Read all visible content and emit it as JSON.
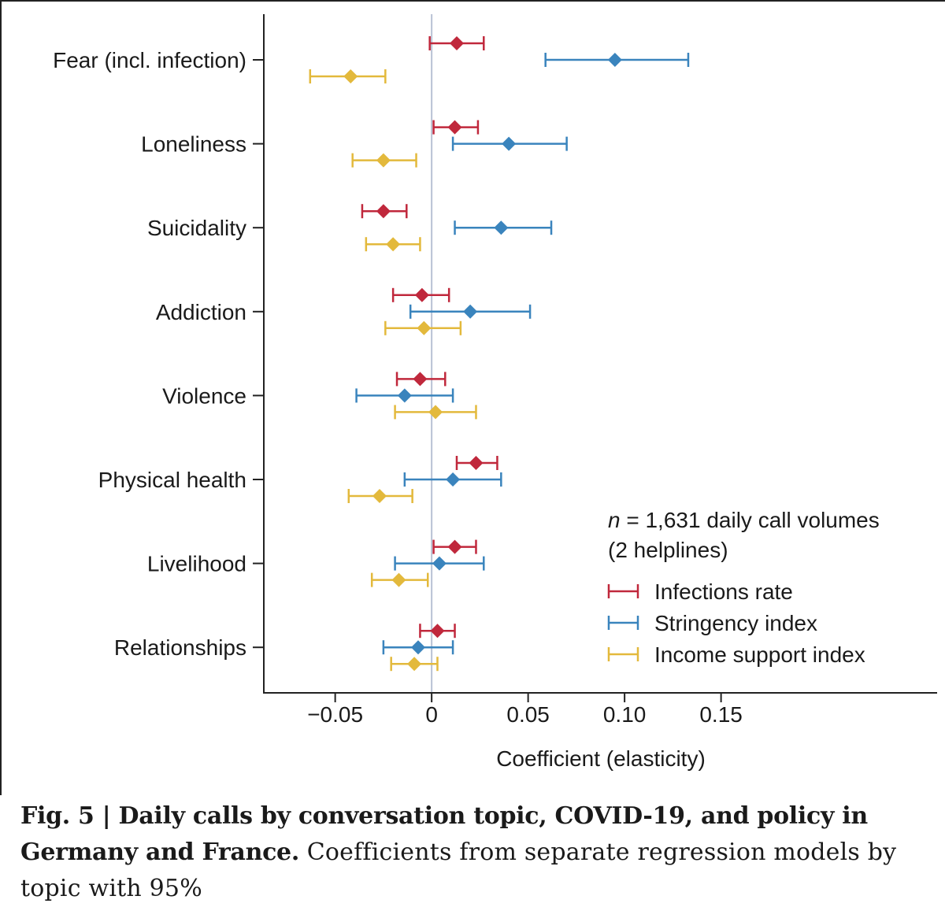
{
  "chart_data": {
    "type": "forest",
    "xlabel": "Coefficient (elasticity)",
    "x_ticks": [
      -0.05,
      0,
      0.05,
      0.1,
      0.15
    ],
    "x_tick_labels": [
      "−0.05",
      "0",
      "0.05",
      "0.10",
      "0.15"
    ],
    "xlim": [
      -0.087,
      0.262
    ],
    "reference_line": 0,
    "categories": [
      "Fear (incl. infection)",
      "Loneliness",
      "Suicidality",
      "Addiction",
      "Violence",
      "Physical health",
      "Livelihood",
      "Relationships"
    ],
    "series": [
      {
        "name": "Infections rate",
        "color": "#c0283c",
        "estimates": [
          0.013,
          0.012,
          -0.025,
          -0.005,
          -0.006,
          0.023,
          0.012,
          0.003
        ],
        "ci_low": [
          -0.001,
          0.001,
          -0.036,
          -0.02,
          -0.018,
          0.013,
          0.001,
          -0.006
        ],
        "ci_high": [
          0.027,
          0.024,
          -0.013,
          0.009,
          0.007,
          0.034,
          0.023,
          0.012
        ]
      },
      {
        "name": "Stringency index",
        "color": "#3a84bd",
        "estimates": [
          0.095,
          0.04,
          0.036,
          0.02,
          -0.014,
          0.011,
          0.004,
          -0.007
        ],
        "ci_low": [
          0.059,
          0.011,
          0.012,
          -0.011,
          -0.039,
          -0.014,
          -0.019,
          -0.025
        ],
        "ci_high": [
          0.133,
          0.07,
          0.062,
          0.051,
          0.011,
          0.036,
          0.027,
          0.011
        ]
      },
      {
        "name": "Income support index",
        "color": "#e3b93c",
        "estimates": [
          -0.042,
          -0.025,
          -0.02,
          -0.004,
          0.002,
          -0.027,
          -0.017,
          -0.009
        ],
        "ci_low": [
          -0.063,
          -0.041,
          -0.034,
          -0.024,
          -0.019,
          -0.043,
          -0.031,
          -0.021
        ],
        "ci_high": [
          -0.024,
          -0.008,
          -0.006,
          0.015,
          0.023,
          -0.01,
          -0.002,
          0.003
        ]
      }
    ],
    "legend_note_prefix": "n",
    "legend_note_rest": " = 1,631 daily call volumes",
    "legend_note_line2": "(2 helplines)",
    "legend_position": "bottom-right"
  },
  "caption": {
    "bold": "Fig. 5 | Daily calls by conversation topic, COVID-19, and policy in Germany and France.",
    "text": " Coefficients from separate regression models by topic with 95%"
  }
}
